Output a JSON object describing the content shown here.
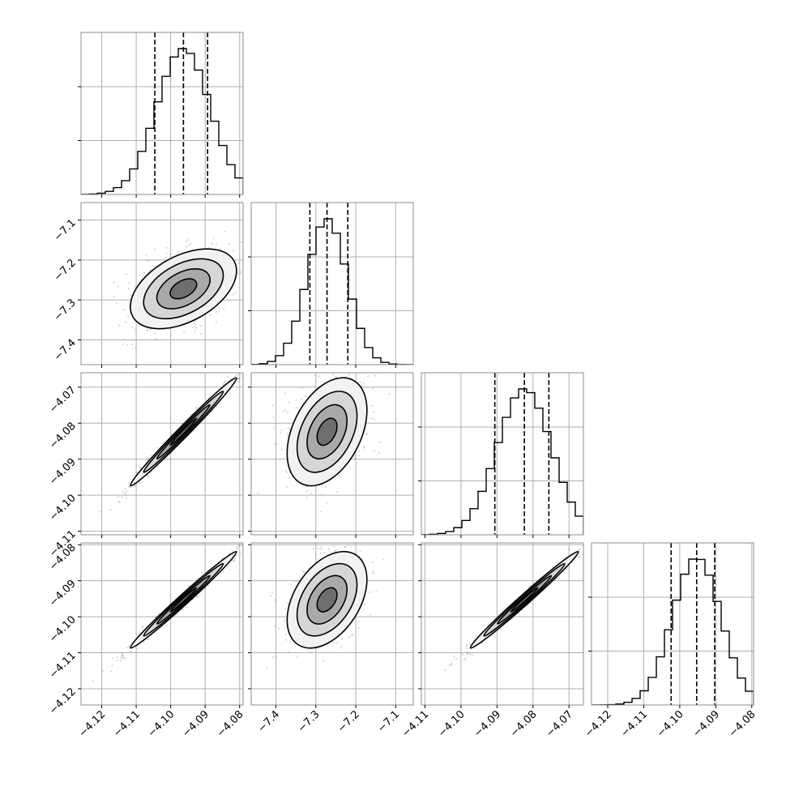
{
  "chart_data": {
    "type": "corner",
    "grid": true,
    "colors": {
      "scatter": "#8c8c8c",
      "line": "#000000",
      "grid": "#b0b0b0"
    },
    "params": [
      {
        "range": [
          -4.126,
          -4.079
        ],
        "ticks": [
          "−4.12",
          "−4.11",
          "−4.10",
          "−4.09",
          "−4.08"
        ],
        "tick_values": [
          -4.12,
          -4.11,
          -4.1,
          -4.09,
          -4.08
        ],
        "quantiles": [
          -4.1046,
          -4.0963,
          -4.0893
        ],
        "mean": -4.0963,
        "sd": 0.0077
      },
      {
        "range": [
          -7.462,
          -7.056
        ],
        "ticks": [
          "−7.4",
          "−7.3",
          "−7.2",
          "−7.1"
        ],
        "tick_values": [
          -7.4,
          -7.3,
          -7.2,
          -7.1
        ],
        "quantiles": [
          -7.315,
          -7.272,
          -7.22
        ],
        "mean": -7.272,
        "sd": 0.05
      },
      {
        "range": [
          -4.111,
          -4.066
        ],
        "ticks": [
          "−4.11",
          "−4.10",
          "−4.09",
          "−4.08",
          "−4.07"
        ],
        "tick_values": [
          -4.11,
          -4.1,
          -4.09,
          -4.08,
          -4.07
        ],
        "quantiles": [
          -4.0906,
          -4.0824,
          -4.0756
        ],
        "mean": -4.0824,
        "sd": 0.0075
      },
      {
        "range": [
          -4.1245,
          -4.0795
        ],
        "ticks": [
          "−4.12",
          "−4.11",
          "−4.10",
          "−4.09",
          "−4.08"
        ],
        "tick_values": [
          -4.12,
          -4.11,
          -4.1,
          -4.09,
          -4.08
        ],
        "quantiles": [
          -4.1024,
          -4.0953,
          -4.0903
        ],
        "mean": -4.0953,
        "sd": 0.0067
      }
    ],
    "correlations": [
      {
        "i": 1,
        "j": 0,
        "r": 0.45
      },
      {
        "i": 2,
        "j": 0,
        "r": 0.99
      },
      {
        "i": 2,
        "j": 1,
        "r": 0.4
      },
      {
        "i": 3,
        "j": 0,
        "r": 0.99
      },
      {
        "i": 3,
        "j": 1,
        "r": 0.42
      },
      {
        "i": 3,
        "j": 2,
        "r": 0.99
      }
    ]
  }
}
